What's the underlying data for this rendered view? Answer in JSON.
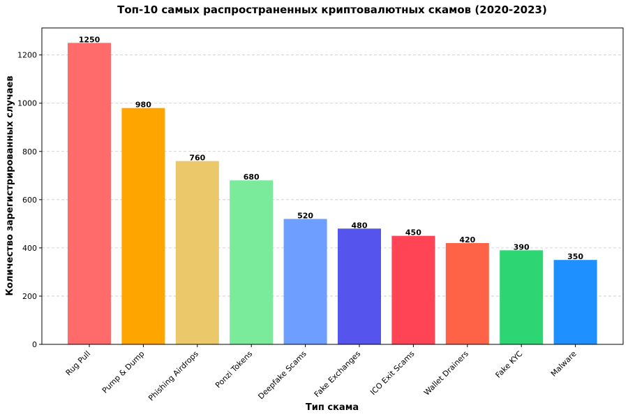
{
  "chart_data": {
    "type": "bar",
    "title": "Топ-10 самых распространенных криптовалютных скамов (2020-2023)",
    "xlabel": "Тип скама",
    "ylabel": "Количество зарегистрированных случаев",
    "categories": [
      "Rug Pull",
      "Pump & Dump",
      "Phishing Airdrops",
      "Ponzi Tokens",
      "Deepfake Scams",
      "Fake Exchanges",
      "ICO Exit Scams",
      "Wallet Drainers",
      "Fake KYC",
      "Malware"
    ],
    "values": [
      1250,
      980,
      760,
      680,
      520,
      480,
      450,
      420,
      390,
      350
    ],
    "data_labels": [
      "1250",
      "980",
      "760",
      "680",
      "520",
      "480",
      "450",
      "420",
      "390",
      "350"
    ],
    "colors": [
      "#FF6B6B",
      "#FFA500",
      "#EBC96A",
      "#7AEB9A",
      "#6E9EFF",
      "#5555EE",
      "#FF4455",
      "#FF6347",
      "#2ED573",
      "#1E90FF"
    ],
    "ylim": [
      0,
      1312
    ],
    "yticks": [
      0,
      200,
      400,
      600,
      800,
      1000,
      1200
    ],
    "ytick_labels": [
      "0",
      "200",
      "400",
      "600",
      "800",
      "1000",
      "1200"
    ],
    "grid": "y-dashed",
    "legend": "none"
  }
}
